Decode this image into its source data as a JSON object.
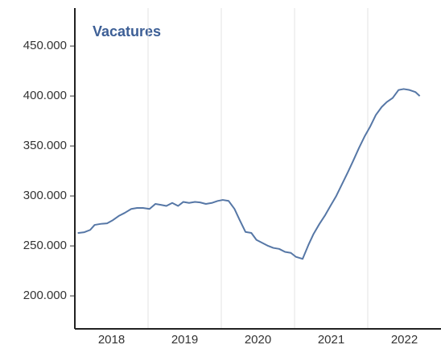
{
  "chart_data": {
    "type": "line",
    "title": "Vacatures",
    "x": [
      2018.04,
      2018.13,
      2018.21,
      2018.27,
      2018.35,
      2018.44,
      2018.52,
      2018.6,
      2018.68,
      2018.77,
      2018.85,
      2018.93,
      2019.02,
      2019.1,
      2019.18,
      2019.25,
      2019.33,
      2019.41,
      2019.48,
      2019.56,
      2019.64,
      2019.71,
      2019.79,
      2019.87,
      2019.95,
      2020.02,
      2020.1,
      2020.18,
      2020.25,
      2020.33,
      2020.41,
      2020.48,
      2020.56,
      2020.64,
      2020.71,
      2020.79,
      2020.87,
      2020.95,
      2021.02,
      2021.11,
      2021.19,
      2021.26,
      2021.34,
      2021.42,
      2021.49,
      2021.57,
      2021.65,
      2021.73,
      2021.8,
      2021.88,
      2021.96,
      2022.03,
      2022.11,
      2022.19,
      2022.26,
      2022.34,
      2022.42,
      2022.49,
      2022.57,
      2022.65,
      2022.71
    ],
    "series": [
      {
        "name": "Vacatures",
        "color": "#5677a6",
        "values": [
          262900,
          263700,
          266000,
          271000,
          272000,
          272600,
          275800,
          280000,
          283000,
          287000,
          288000,
          288000,
          287000,
          292000,
          291000,
          290000,
          293000,
          290000,
          294000,
          293000,
          294000,
          293500,
          292000,
          293000,
          295000,
          296000,
          295000,
          287000,
          276000,
          264000,
          263000,
          256000,
          253000,
          250000,
          248000,
          247000,
          244000,
          243000,
          239000,
          237000,
          251000,
          262000,
          272000,
          281000,
          290000,
          300000,
          312000,
          324000,
          335000,
          348000,
          360000,
          369000,
          381000,
          389000,
          394000,
          398000,
          406000,
          407000,
          406000,
          404000,
          400000
        ]
      }
    ],
    "xlim": [
      2018,
      2023
    ],
    "xticks": [
      {
        "value": 2018.5,
        "label": "2018"
      },
      {
        "value": 2019.5,
        "label": "2019"
      },
      {
        "value": 2020.5,
        "label": "2020"
      },
      {
        "value": 2021.5,
        "label": "2021"
      },
      {
        "value": 2022.5,
        "label": "2022"
      }
    ],
    "xgrid": [
      2019,
      2020,
      2021,
      2022
    ],
    "ylim": [
      167000,
      488000
    ],
    "yticks": [
      {
        "value": 200000,
        "label": "200.000"
      },
      {
        "value": 250000,
        "label": "250.000"
      },
      {
        "value": 300000,
        "label": "300.000"
      },
      {
        "value": 350000,
        "label": "350.000"
      },
      {
        "value": 400000,
        "label": "400.000"
      },
      {
        "value": 450000,
        "label": "450.000"
      }
    ]
  }
}
